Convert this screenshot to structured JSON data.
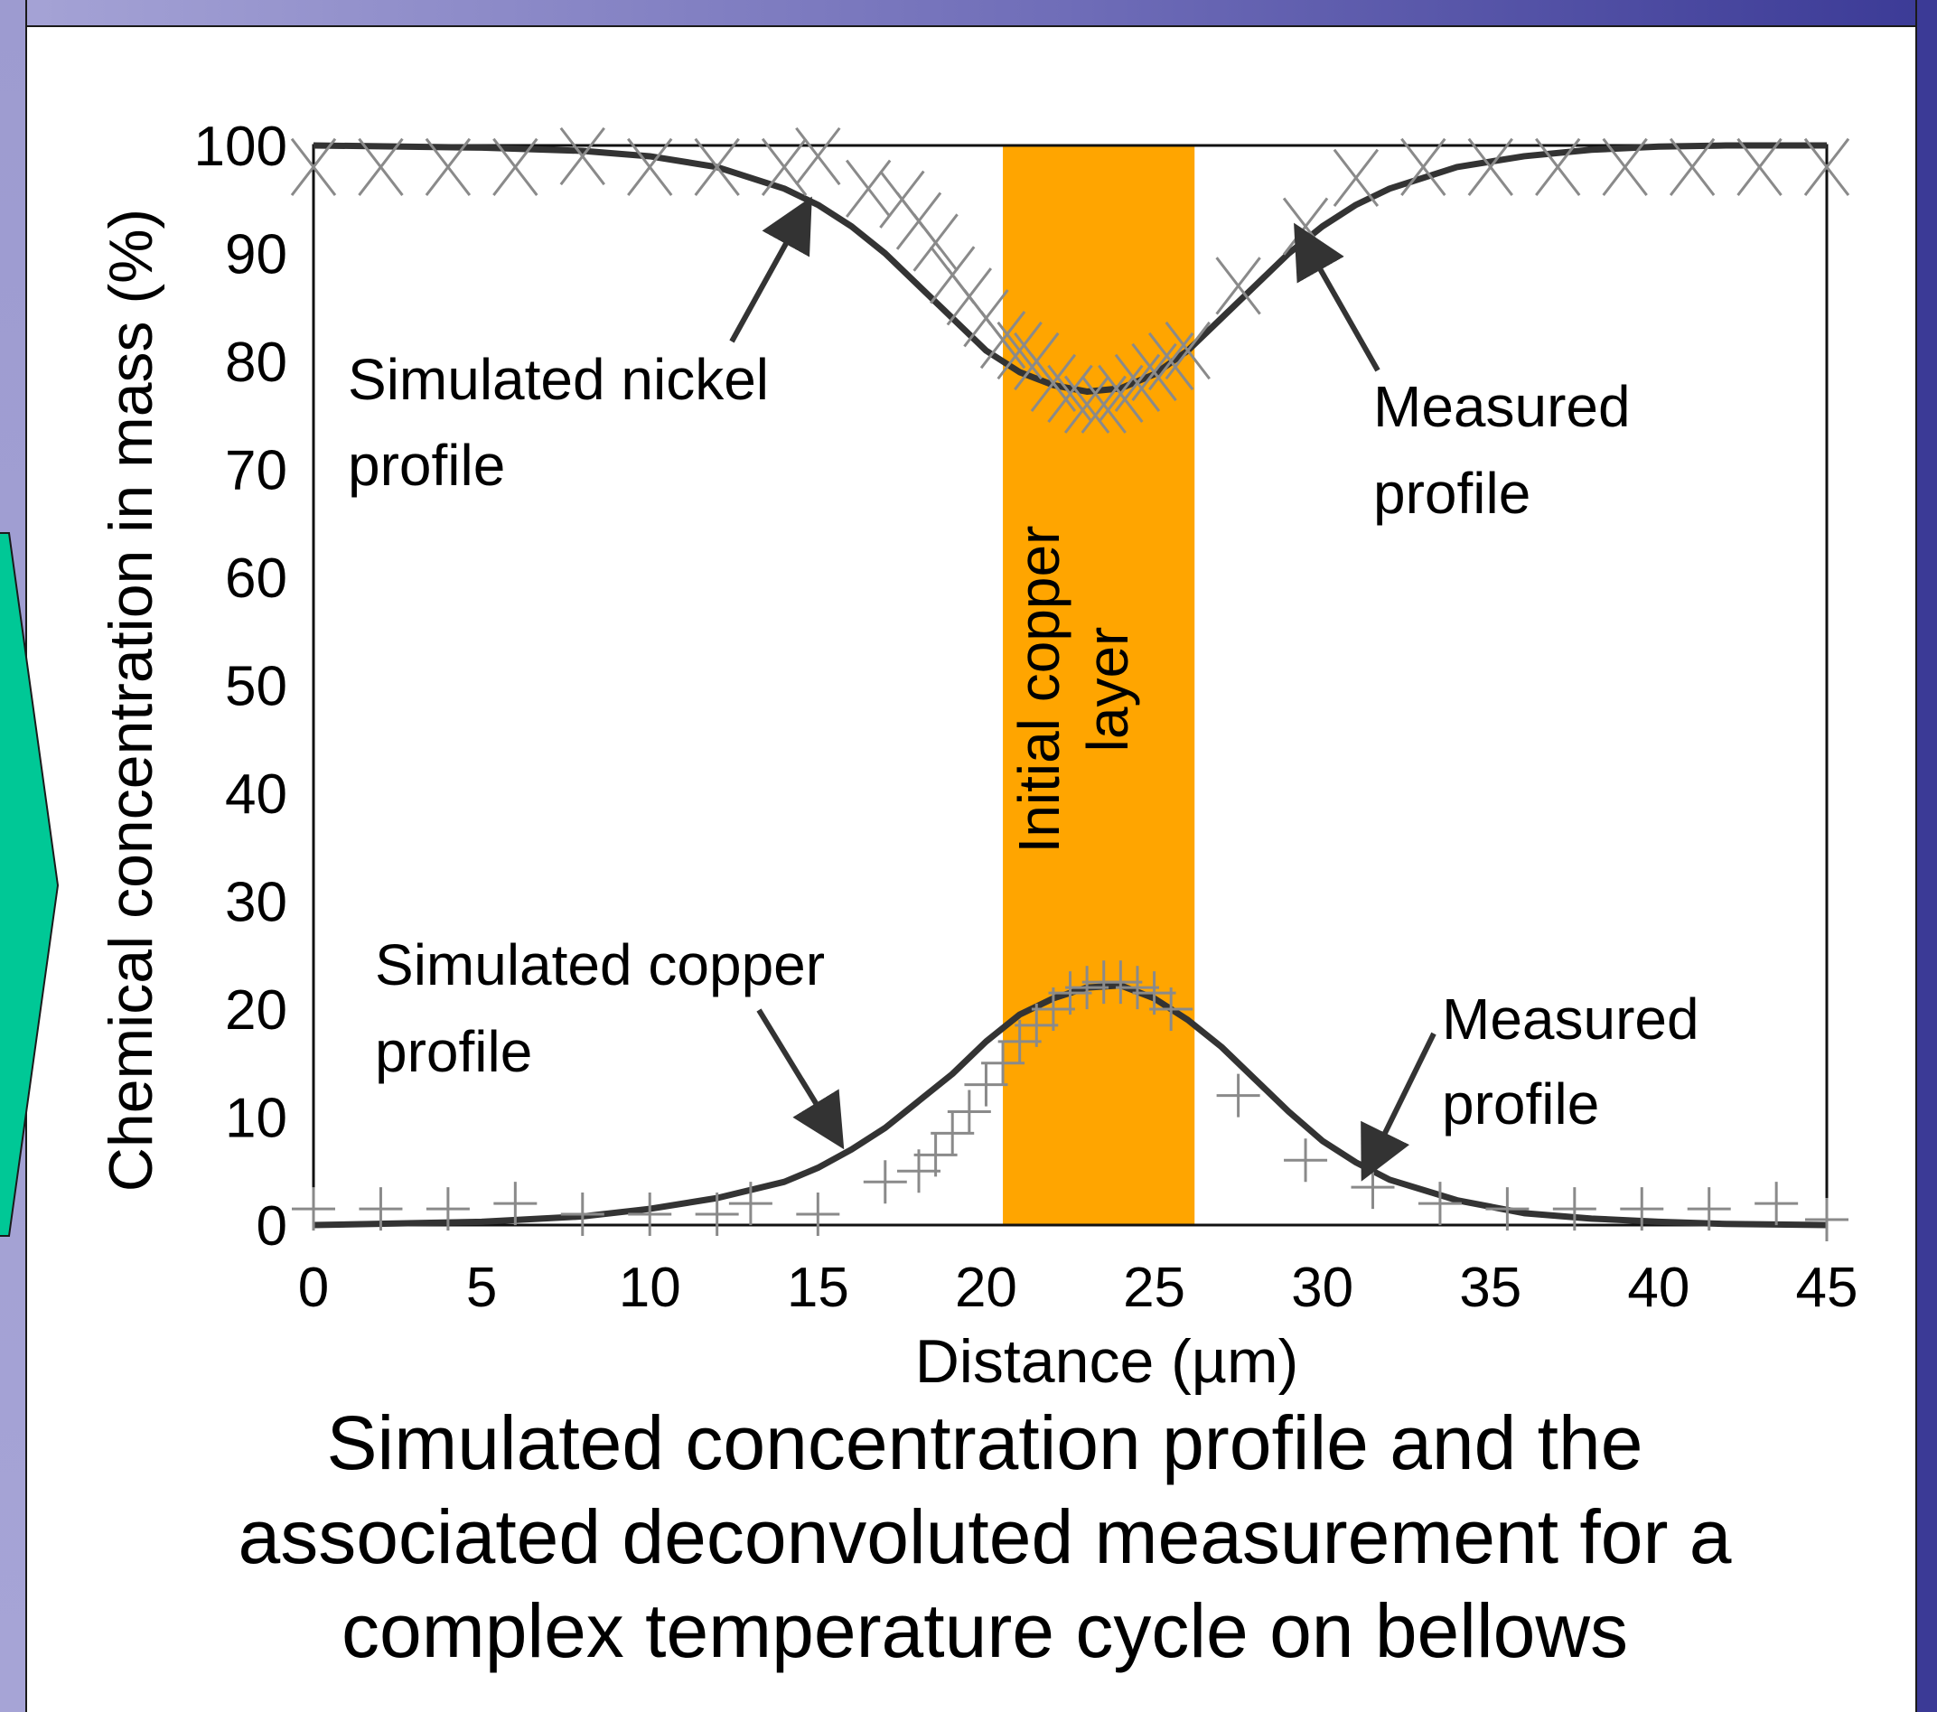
{
  "chart_data": {
    "type": "line",
    "xlabel": "Distance (µm)",
    "ylabel": "Chemical concentration in mass (%)",
    "xlim": [
      0,
      45
    ],
    "ylim": [
      0,
      100
    ],
    "xticks": [
      "0",
      "5",
      "10",
      "15",
      "20",
      "25",
      "30",
      "35",
      "40",
      "45"
    ],
    "yticks": [
      "0",
      "10",
      "20",
      "30",
      "40",
      "50",
      "60",
      "70",
      "80",
      "90",
      "100"
    ],
    "grid": false,
    "band": {
      "label_line1": "Initial copper",
      "label_line2": "layer",
      "x_start": 20.5,
      "x_end": 26.2,
      "color": "#FFA500"
    },
    "series": [
      {
        "marker": "line",
        "color": "#333333",
        "x": [
          0,
          5,
          8,
          10,
          12,
          14,
          15,
          16,
          17,
          18,
          19,
          20,
          21,
          22,
          23,
          24,
          25,
          26,
          27,
          28,
          29,
          30,
          31,
          32,
          34,
          36,
          38,
          40,
          42,
          45
        ],
        "y": [
          100,
          99.8,
          99.5,
          99,
          98,
          96,
          94.5,
          92.5,
          90,
          87,
          84,
          81,
          79,
          77.8,
          77.2,
          77.5,
          78.8,
          81,
          84,
          87,
          90,
          92.5,
          94.5,
          96,
          98,
          99,
          99.6,
          99.9,
          100,
          100
        ]
      },
      {
        "marker": "x",
        "color": "#8a8a8a",
        "x": [
          0,
          2,
          4,
          6,
          8,
          10,
          12,
          14,
          15,
          16.5,
          17.5,
          18,
          18.5,
          19,
          19.5,
          20,
          20.5,
          21,
          21.5,
          22,
          22.5,
          23,
          23.5,
          24,
          24.5,
          25,
          25.5,
          26,
          27.5,
          29.5,
          31,
          33,
          35,
          37,
          39,
          41,
          43,
          45
        ],
        "y": [
          98,
          98,
          98,
          98,
          99,
          98,
          98,
          98,
          99,
          96,
          95,
          93,
          91,
          88,
          86,
          84,
          82,
          81,
          80,
          78,
          77,
          76,
          76,
          77,
          78,
          79,
          80,
          81,
          87,
          92.5,
          97,
          98,
          98,
          98,
          98,
          98,
          98,
          98
        ]
      },
      {
        "marker": "line",
        "color": "#333333",
        "x": [
          0,
          5,
          8,
          10,
          12,
          14,
          15,
          16,
          17,
          18,
          19,
          20,
          21,
          22,
          23,
          24,
          25,
          26,
          27,
          28,
          29,
          30,
          31,
          32,
          34,
          36,
          38,
          40,
          42,
          45
        ],
        "y": [
          0,
          0.3,
          0.8,
          1.5,
          2.5,
          4,
          5.3,
          7,
          9,
          11.5,
          14,
          17,
          19.5,
          21,
          22,
          22.2,
          21,
          19,
          16.5,
          13.5,
          10.5,
          7.8,
          5.8,
          4.2,
          2.3,
          1.1,
          0.6,
          0.3,
          0.1,
          0
        ]
      },
      {
        "marker": "+",
        "color": "#8a8a8a",
        "x": [
          0,
          2,
          4,
          6,
          8,
          10,
          12,
          13,
          15,
          17,
          18,
          18.5,
          19,
          19.5,
          20,
          20.5,
          21,
          21.5,
          22,
          22.5,
          23,
          23.5,
          24,
          24.5,
          25,
          25.5,
          27.5,
          29.5,
          31.5,
          33.5,
          35.5,
          37.5,
          39.5,
          41.5,
          43.5,
          45
        ],
        "y": [
          1.5,
          1.5,
          1.5,
          2,
          1,
          1,
          1,
          2,
          1,
          4,
          5,
          6.5,
          8.5,
          10.5,
          13,
          15,
          17,
          18.5,
          20,
          21.5,
          22,
          22.5,
          22.5,
          22,
          21.5,
          20,
          12,
          6,
          3.5,
          2,
          1.5,
          1.5,
          1.5,
          1.5,
          2,
          0.5
        ]
      }
    ],
    "annotations": [
      {
        "line1": "Simulated nickel",
        "line2": "profile"
      },
      {
        "line1": "Measured",
        "line2": "profile"
      },
      {
        "line1": "Simulated copper",
        "line2": "profile"
      },
      {
        "line1": "Measured",
        "line2": "profile"
      }
    ]
  },
  "caption": {
    "line1": "Simulated concentration profile and the",
    "line2": "associated deconvoluted measurement for a",
    "line3": "complex temperature cycle on bellows"
  }
}
